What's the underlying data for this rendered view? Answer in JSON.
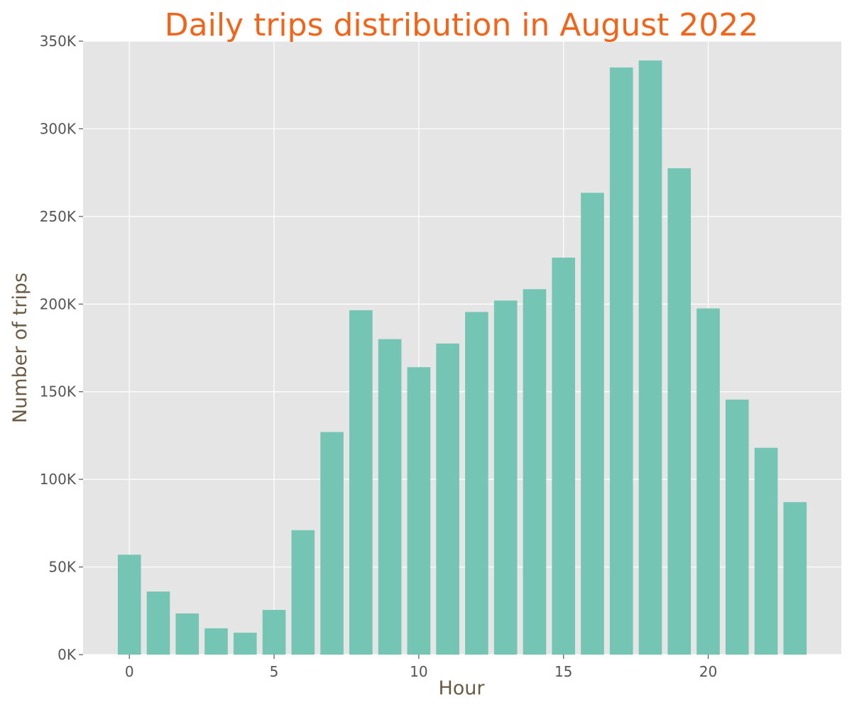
{
  "colors": {
    "title": "#f26419",
    "axis_label": "#6b5b45",
    "bar": "#74c5b4",
    "plot_bg": "#e5e5e5",
    "grid": "#ffffff",
    "tick": "#555555"
  },
  "chart_data": {
    "type": "bar",
    "title": "Daily trips distribution in August 2022",
    "xlabel": "Hour",
    "ylabel": "Number of trips",
    "x": [
      0,
      1,
      2,
      3,
      4,
      5,
      6,
      7,
      8,
      9,
      10,
      11,
      12,
      13,
      14,
      15,
      16,
      17,
      18,
      19,
      20,
      21,
      22,
      23
    ],
    "values": [
      57000,
      36000,
      23500,
      15000,
      12500,
      25500,
      71000,
      127000,
      196500,
      180000,
      164000,
      177500,
      195500,
      202000,
      208500,
      226500,
      263500,
      335000,
      339000,
      277500,
      197500,
      145500,
      118000,
      87000
    ],
    "xlim": [
      -1.6,
      24.6
    ],
    "ylim": [
      0,
      350000
    ],
    "x_ticks": [
      0,
      5,
      10,
      15,
      20
    ],
    "x_tick_labels": [
      "0",
      "5",
      "10",
      "15",
      "20"
    ],
    "y_ticks": [
      0,
      50000,
      100000,
      150000,
      200000,
      250000,
      300000,
      350000
    ],
    "y_tick_labels": [
      "0K",
      "50K",
      "100K",
      "150K",
      "200K",
      "250K",
      "300K",
      "350K"
    ],
    "grid": true,
    "legend": "none"
  }
}
